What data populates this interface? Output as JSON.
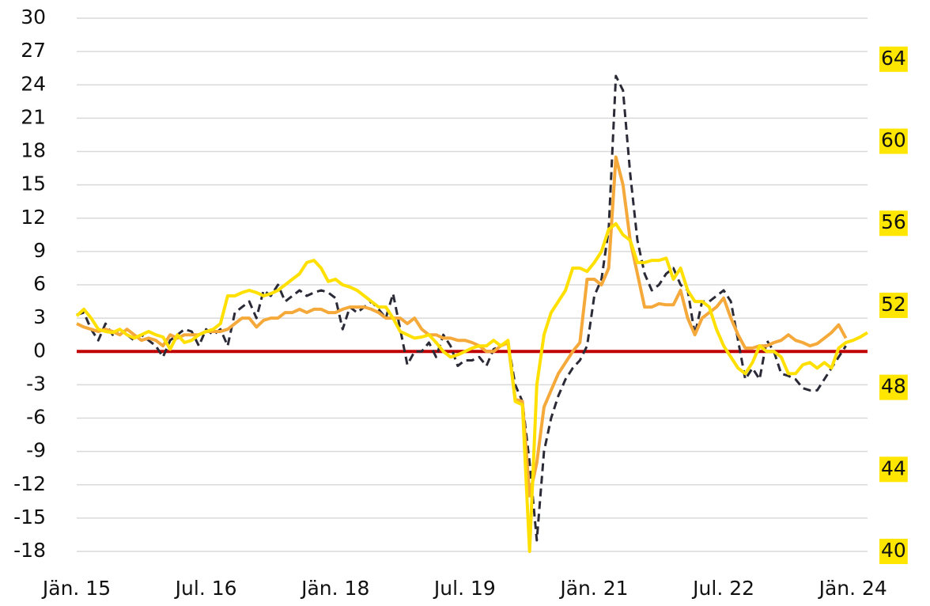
{
  "chart_data": {
    "type": "line",
    "categories": [
      "Jän. 15",
      null,
      null,
      null,
      null,
      null,
      null,
      null,
      null,
      null,
      null,
      null,
      null,
      null,
      null,
      null,
      null,
      null,
      "Jul. 16",
      null,
      null,
      null,
      null,
      null,
      null,
      null,
      null,
      null,
      null,
      null,
      null,
      null,
      null,
      null,
      null,
      null,
      "Jän. 18",
      null,
      null,
      null,
      null,
      null,
      null,
      null,
      null,
      null,
      null,
      null,
      null,
      null,
      null,
      null,
      null,
      null,
      "Jul. 19",
      null,
      null,
      null,
      null,
      null,
      null,
      null,
      null,
      null,
      null,
      null,
      null,
      null,
      null,
      null,
      null,
      null,
      "Jän. 21",
      null,
      null,
      null,
      null,
      null,
      null,
      null,
      null,
      null,
      null,
      null,
      null,
      null,
      null,
      null,
      null,
      null,
      "Jul. 22",
      null,
      null,
      null,
      null,
      null,
      null,
      null,
      null,
      null,
      null,
      null,
      null,
      null,
      null,
      null,
      null,
      null,
      "Jän. 24",
      null,
      null
    ],
    "series": [
      {
        "color": "#2b2b38",
        "line_style": "dashed",
        "values": [
          3.3,
          3.5,
          2,
          1,
          2.5,
          1.5,
          2,
          1.5,
          1,
          1.5,
          1,
          0.5,
          -0.5,
          1,
          1.5,
          2,
          1.8,
          0.5,
          2,
          1.5,
          2,
          0.5,
          3.5,
          4,
          4.5,
          3,
          5.5,
          5,
          6,
          4.5,
          5,
          5.5,
          5,
          5.3,
          5.5,
          5.3,
          4.8,
          2,
          4,
          3.5,
          4,
          4.5,
          3.8,
          3,
          5.2,
          2,
          -1.2,
          0,
          0,
          0.8,
          -0.5,
          1.5,
          0.5,
          -1.3,
          -0.8,
          -0.8,
          -0.5,
          -1.3,
          0.2,
          0.5,
          0.8,
          -3,
          -4.5,
          -10,
          -17,
          -9,
          -6,
          -4,
          -2.5,
          -1.5,
          -0.8,
          0.5,
          5,
          6.5,
          11,
          24.8,
          23.5,
          16,
          10,
          7,
          5.5,
          6,
          7,
          7.5,
          6,
          5.5,
          1.5,
          4.5,
          4.5,
          5,
          5.5,
          4.5,
          1,
          -2.5,
          -1.5,
          -2.5,
          1,
          0,
          -2,
          -2.2,
          -2.5,
          -3.3,
          -3.5,
          -3.5,
          -2.5,
          -1.5,
          -0.5,
          0.5,
          null,
          null,
          null
        ]
      },
      {
        "color": "#f5a93a",
        "line_style": "solid",
        "values": [
          2.5,
          2.2,
          2,
          1.8,
          2,
          1.8,
          1.5,
          2,
          1.5,
          1,
          1.2,
          1,
          0.5,
          1.5,
          1.2,
          1.5,
          1.5,
          1.5,
          1.8,
          1.8,
          1.8,
          2,
          2.5,
          3,
          3,
          2.2,
          2.8,
          3,
          3,
          3.5,
          3.5,
          3.8,
          3.5,
          3.8,
          3.8,
          3.5,
          3.5,
          3.8,
          4,
          4,
          4,
          3.8,
          3.5,
          3,
          3,
          3,
          2.5,
          3,
          2,
          1.5,
          1.5,
          1.2,
          1.2,
          1,
          1,
          0.8,
          0.5,
          0,
          0,
          0.5,
          0.8,
          -4.3,
          -4.5,
          -13,
          -10,
          -5,
          -3.5,
          -2,
          -1,
          0,
          0.8,
          6.5,
          6.5,
          6,
          7.5,
          17.5,
          15,
          10,
          7,
          4,
          4,
          4.3,
          4.2,
          4.2,
          5.5,
          3,
          1.5,
          3,
          3.5,
          4,
          4.8,
          3,
          1.5,
          0.3,
          0.3,
          0.5,
          0.5,
          0.8,
          1,
          1.5,
          1,
          0.8,
          0.5,
          0.7,
          1.2,
          1.7,
          2.4,
          1.2,
          null,
          null,
          null
        ]
      },
      {
        "color": "#ffe000",
        "line_style": "solid",
        "values": [
          3.2,
          3.8,
          3,
          2,
          1.8,
          1.7,
          2,
          1.5,
          1.2,
          1.5,
          1.8,
          1.5,
          1.3,
          0.2,
          1.5,
          0.8,
          1,
          1.5,
          1.8,
          2,
          2.5,
          5,
          5,
          5.3,
          5.5,
          5.3,
          5,
          5.2,
          5.5,
          6,
          6.5,
          7,
          8,
          8.2,
          7.5,
          6.3,
          6.5,
          6,
          5.8,
          5.5,
          5,
          4.5,
          4,
          4,
          3,
          1.8,
          1.5,
          1.2,
          1.3,
          1.5,
          0.8,
          0,
          -0.5,
          -0.3,
          0,
          0.3,
          0.5,
          0.5,
          1,
          0.5,
          1,
          -4.5,
          -4.8,
          -18,
          -3,
          1.5,
          3.5,
          4.5,
          5.5,
          7.5,
          7.5,
          7.2,
          8,
          9,
          11,
          11.5,
          10.5,
          10,
          8,
          8,
          8.2,
          8.2,
          8.4,
          6.5,
          7.5,
          5.5,
          4.5,
          4.5,
          4,
          2,
          0.5,
          -0.5,
          -1.5,
          -2,
          -1,
          0.5,
          0,
          0,
          -0.5,
          -2,
          -2,
          -1.2,
          -1,
          -1.5,
          -1,
          -1.5,
          0.3,
          0.8,
          1,
          1.3,
          1.7
        ]
      }
    ],
    "ylim": [
      -18,
      30
    ],
    "yticks": [
      -18,
      -15,
      -12,
      -9,
      -6,
      -3,
      0,
      3,
      6,
      9,
      12,
      15,
      18,
      21,
      24,
      27,
      30
    ],
    "y2lim": [
      40,
      66
    ],
    "y2ticks": [
      40,
      44,
      48,
      52,
      56,
      60,
      64
    ],
    "y2_label_background": "#ffe600",
    "zero_line_color": "#c00000",
    "grid": true
  }
}
